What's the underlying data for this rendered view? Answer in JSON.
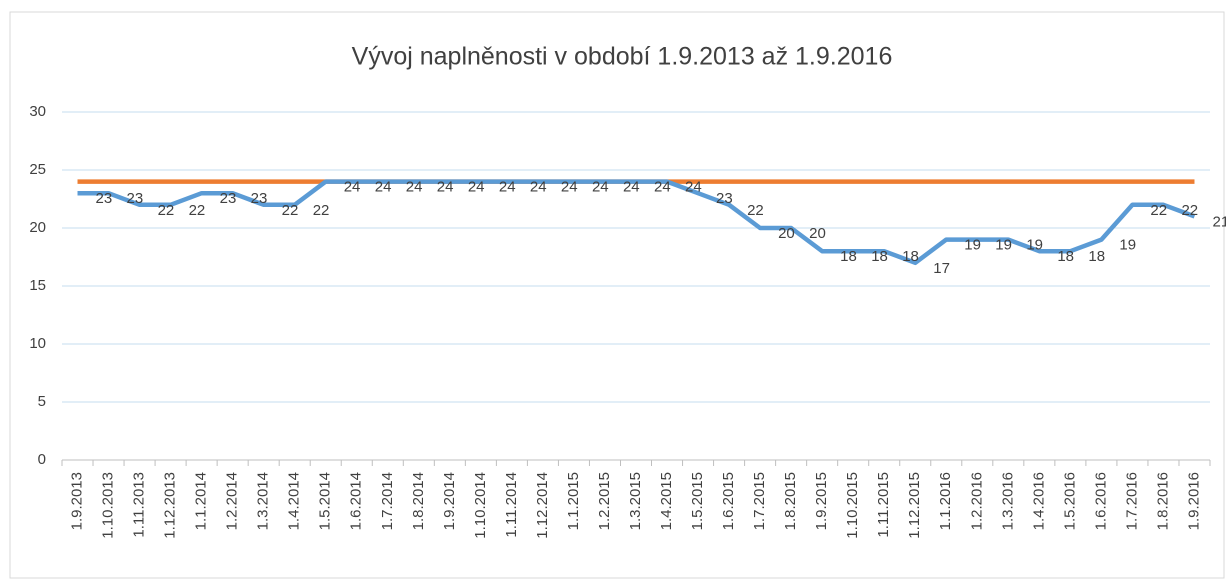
{
  "chart_data": {
    "type": "line",
    "title": "Vývoj naplněnosti v období 1.9.2013 až 1.9.2016",
    "categories": [
      "1.9.2013",
      "1.10.2013",
      "1.11.2013",
      "1.12.2013",
      "1.1.2014",
      "1.2.2014",
      "1.3.2014",
      "1.4.2014",
      "1.5.2014",
      "1.6.2014",
      "1.7.2014",
      "1.8.2014",
      "1.9.2014",
      "1.10.2014",
      "1.11.2014",
      "1.12.2014",
      "1.1.2015",
      "1.2.2015",
      "1.3.2015",
      "1.4.2015",
      "1.5.2015",
      "1.6.2015",
      "1.7.2015",
      "1.8.2015",
      "1.9.2015",
      "1.10.2015",
      "1.11.2015",
      "1.12.2015",
      "1.1.2016",
      "1.2.2016",
      "1.3.2016",
      "1.4.2016",
      "1.5.2016",
      "1.6.2016",
      "1.7.2016",
      "1.8.2016",
      "1.9.2016"
    ],
    "series": [
      {
        "color": "#5b9bd5",
        "data_labels": true,
        "values": [
          23,
          23,
          22,
          22,
          23,
          23,
          22,
          22,
          24,
          24,
          24,
          24,
          24,
          24,
          24,
          24,
          24,
          24,
          24,
          24,
          23,
          22,
          20,
          20,
          18,
          18,
          18,
          17,
          19,
          19,
          19,
          18,
          18,
          19,
          22,
          22,
          21
        ]
      },
      {
        "color": "#ed7d31",
        "data_labels": false,
        "values": [
          24,
          24,
          24,
          24,
          24,
          24,
          24,
          24,
          24,
          24,
          24,
          24,
          24,
          24,
          24,
          24,
          24,
          24,
          24,
          24,
          24,
          24,
          24,
          24,
          24,
          24,
          24,
          24,
          24,
          24,
          24,
          24,
          24,
          24,
          24,
          24,
          24
        ]
      }
    ],
    "ylim": [
      0,
      30
    ],
    "yticks": [
      0,
      5,
      10,
      15,
      20,
      25,
      30
    ],
    "grid": true
  }
}
